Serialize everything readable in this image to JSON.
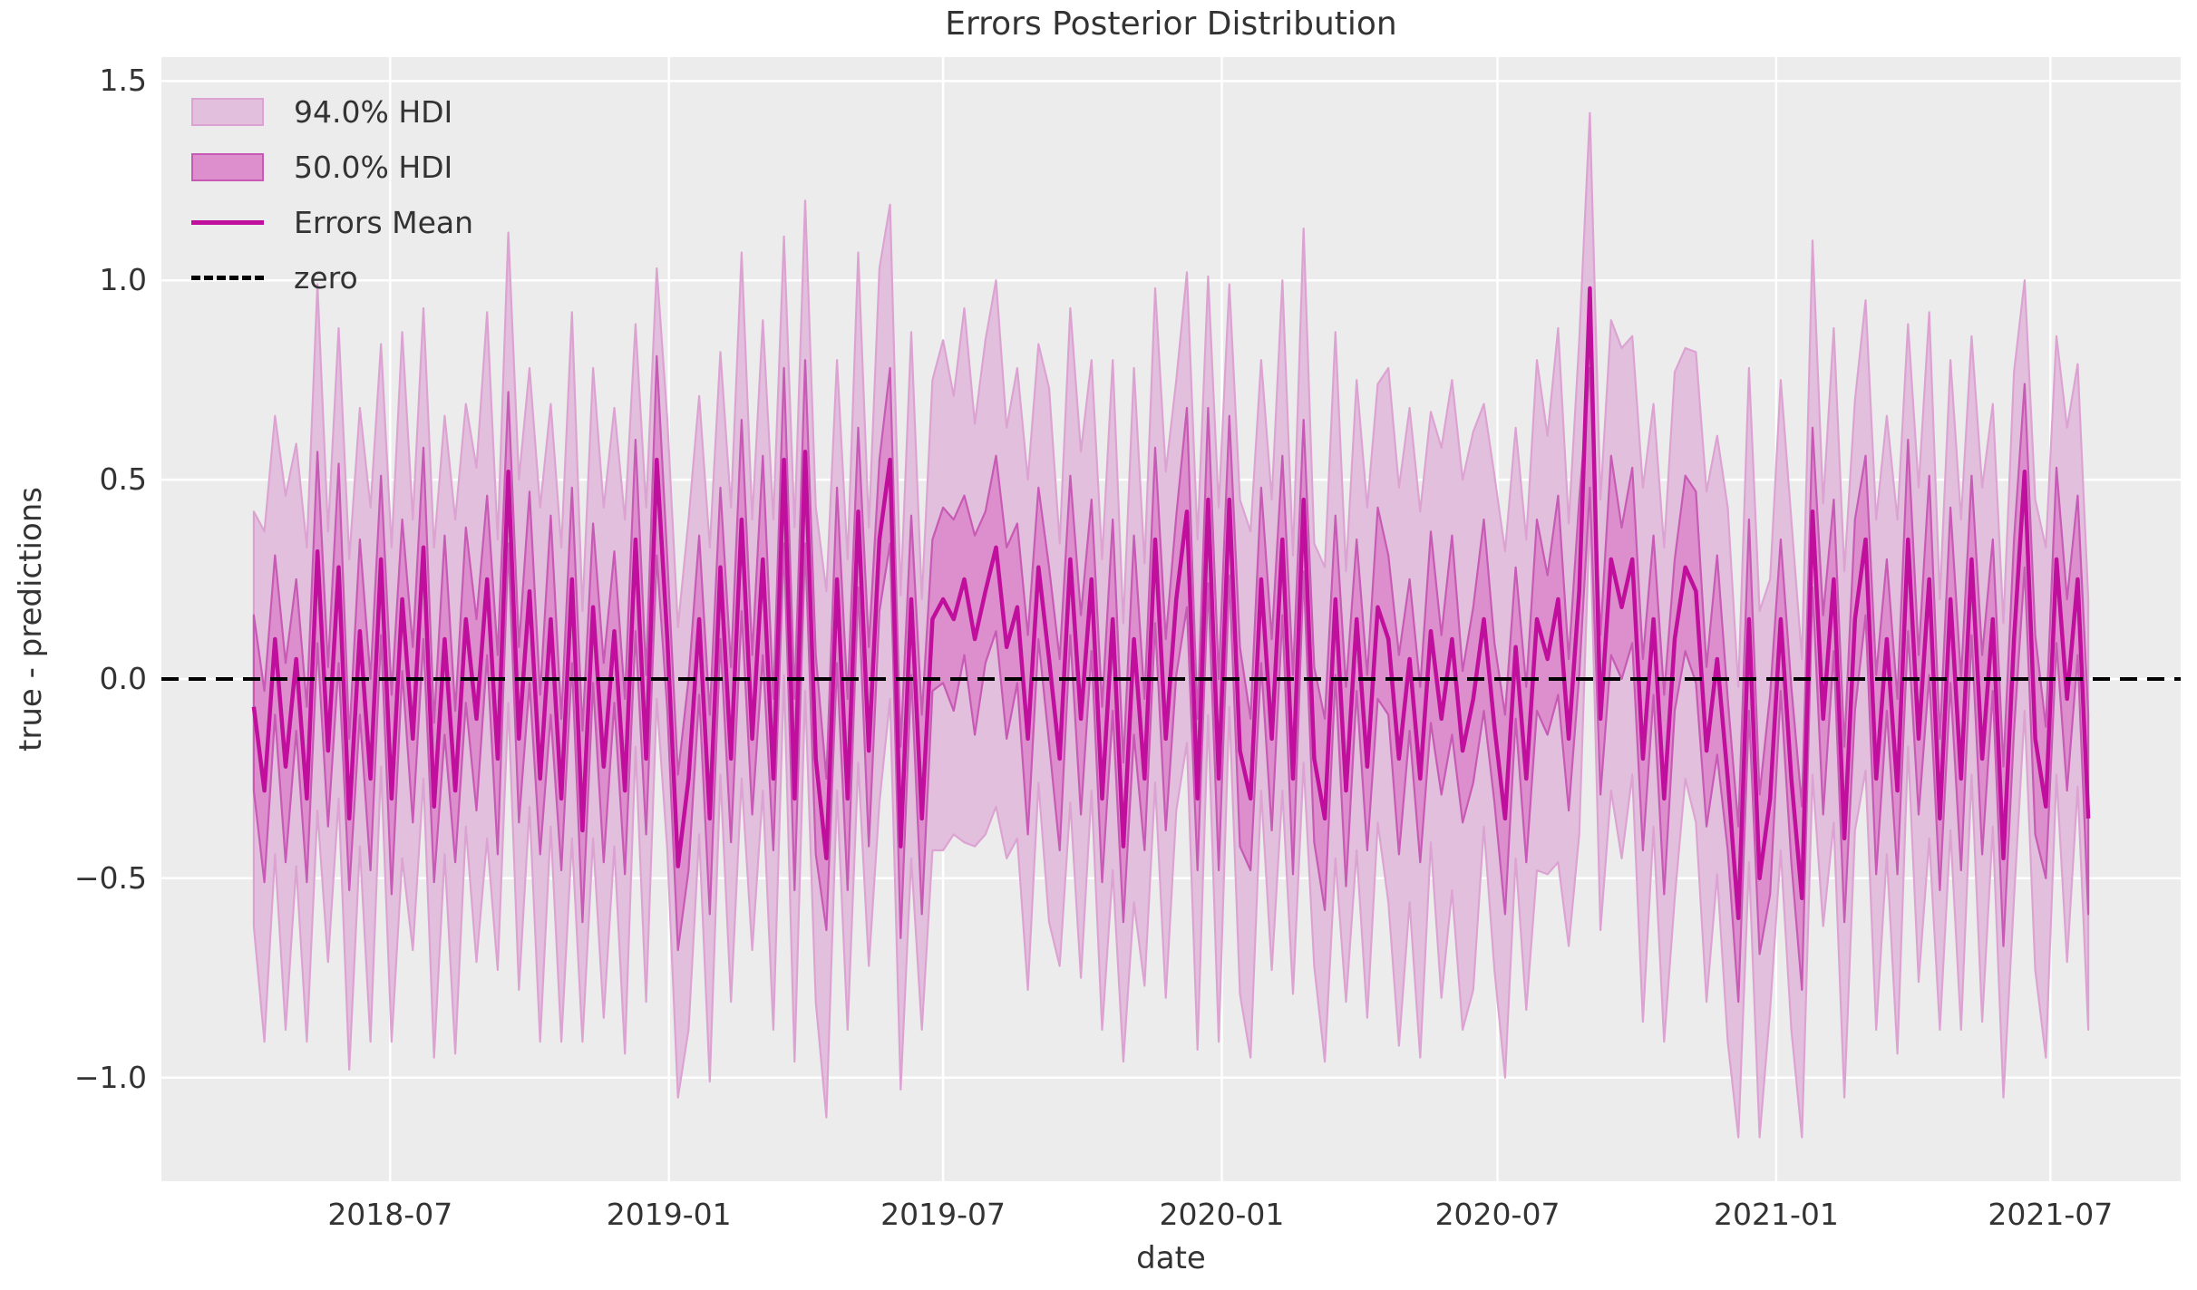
{
  "chart_data": {
    "type": "line",
    "title": "Errors Posterior Distribution",
    "xlabel": "date",
    "ylabel": "true - predictions",
    "grid": true,
    "x_axis": {
      "tick_dates": [
        "2018-07-01",
        "2019-01-01",
        "2019-07-01",
        "2020-01-01",
        "2020-07-01",
        "2021-01-01",
        "2021-07-01"
      ],
      "tick_labels": [
        "2018-07",
        "2019-01",
        "2019-07",
        "2020-01",
        "2020-07",
        "2021-01",
        "2021-07"
      ],
      "lim": [
        "2018-01-31",
        "2021-09-25"
      ]
    },
    "y_axis": {
      "ticks": [
        1.5,
        1.0,
        0.5,
        0.0,
        -0.5,
        -1.0
      ],
      "tick_labels": [
        "1.5",
        "1.0",
        "0.5",
        "0.0",
        "−0.5",
        "−1.0"
      ],
      "lim": [
        -1.26,
        1.56
      ]
    },
    "zero_line": {
      "label": "zero",
      "value": 0.0,
      "style": "dashed"
    },
    "legend": {
      "position": "upper left",
      "items": [
        {
          "label": "94.0% HDI",
          "type": "patch",
          "fill": "#E3BFDE",
          "edge": "#DCA3D2"
        },
        {
          "label": "50.0% HDI",
          "type": "patch",
          "fill": "#DC8FCC",
          "edge": "#C75AB4"
        },
        {
          "label": "Errors Mean",
          "type": "line",
          "color": "#C00F9C"
        },
        {
          "label": "zero",
          "type": "dashed-line",
          "color": "#000000"
        }
      ]
    },
    "series": {
      "name": "Errors Mean",
      "freq": "weekly",
      "dates": [
        "2018-04-02",
        "2018-04-09",
        "2018-04-16",
        "2018-04-23",
        "2018-04-30",
        "2018-05-07",
        "2018-05-14",
        "2018-05-21",
        "2018-05-28",
        "2018-06-04",
        "2018-06-11",
        "2018-06-18",
        "2018-06-25",
        "2018-07-02",
        "2018-07-09",
        "2018-07-16",
        "2018-07-23",
        "2018-07-30",
        "2018-08-06",
        "2018-08-13",
        "2018-08-20",
        "2018-08-27",
        "2018-09-03",
        "2018-09-10",
        "2018-09-17",
        "2018-09-24",
        "2018-10-01",
        "2018-10-08",
        "2018-10-15",
        "2018-10-22",
        "2018-10-29",
        "2018-11-05",
        "2018-11-12",
        "2018-11-19",
        "2018-11-26",
        "2018-12-03",
        "2018-12-10",
        "2018-12-17",
        "2018-12-24",
        "2018-12-31",
        "2019-01-07",
        "2019-01-14",
        "2019-01-21",
        "2019-01-28",
        "2019-02-04",
        "2019-02-11",
        "2019-02-18",
        "2019-02-25",
        "2019-03-04",
        "2019-03-11",
        "2019-03-18",
        "2019-03-25",
        "2019-04-01",
        "2019-04-08",
        "2019-04-15",
        "2019-04-22",
        "2019-04-29",
        "2019-05-06",
        "2019-05-13",
        "2019-05-20",
        "2019-05-27",
        "2019-06-03",
        "2019-06-10",
        "2019-06-17",
        "2019-06-24",
        "2019-07-01",
        "2019-07-08",
        "2019-07-15",
        "2019-07-22",
        "2019-07-29",
        "2019-08-05",
        "2019-08-12",
        "2019-08-19",
        "2019-08-26",
        "2019-09-02",
        "2019-09-09",
        "2019-09-16",
        "2019-09-23",
        "2019-09-30",
        "2019-10-07",
        "2019-10-14",
        "2019-10-21",
        "2019-10-28",
        "2019-11-04",
        "2019-11-11",
        "2019-11-18",
        "2019-11-25",
        "2019-12-02",
        "2019-12-09",
        "2019-12-16",
        "2019-12-23",
        "2019-12-30",
        "2020-01-06",
        "2020-01-13",
        "2020-01-20",
        "2020-01-27",
        "2020-02-03",
        "2020-02-10",
        "2020-02-17",
        "2020-02-24",
        "2020-03-02",
        "2020-03-09",
        "2020-03-16",
        "2020-03-23",
        "2020-03-30",
        "2020-04-06",
        "2020-04-13",
        "2020-04-20",
        "2020-04-27",
        "2020-05-04",
        "2020-05-11",
        "2020-05-18",
        "2020-05-25",
        "2020-06-01",
        "2020-06-08",
        "2020-06-15",
        "2020-06-22",
        "2020-06-29",
        "2020-07-06",
        "2020-07-13",
        "2020-07-20",
        "2020-07-27",
        "2020-08-03",
        "2020-08-10",
        "2020-08-17",
        "2020-08-24",
        "2020-08-31",
        "2020-09-07",
        "2020-09-14",
        "2020-09-21",
        "2020-09-28",
        "2020-10-05",
        "2020-10-12",
        "2020-10-19",
        "2020-10-26",
        "2020-11-02",
        "2020-11-09",
        "2020-11-16",
        "2020-11-23",
        "2020-11-30",
        "2020-12-07",
        "2020-12-14",
        "2020-12-21",
        "2020-12-28",
        "2021-01-04",
        "2021-01-11",
        "2021-01-18",
        "2021-01-25",
        "2021-02-01",
        "2021-02-08",
        "2021-02-15",
        "2021-02-22",
        "2021-03-01",
        "2021-03-08",
        "2021-03-15",
        "2021-03-22",
        "2021-03-29",
        "2021-04-05",
        "2021-04-12",
        "2021-04-19",
        "2021-04-26",
        "2021-05-03",
        "2021-05-10",
        "2021-05-17",
        "2021-05-24",
        "2021-05-31",
        "2021-06-07",
        "2021-06-14",
        "2021-06-21",
        "2021-06-28",
        "2021-07-05",
        "2021-07-12",
        "2021-07-19",
        "2021-07-26"
      ],
      "mean": [
        -0.07,
        -0.28,
        0.1,
        -0.22,
        0.05,
        -0.3,
        0.32,
        -0.18,
        0.28,
        -0.35,
        0.12,
        -0.25,
        0.3,
        -0.3,
        0.2,
        -0.15,
        0.33,
        -0.32,
        0.1,
        -0.28,
        0.15,
        -0.1,
        0.25,
        -0.2,
        0.52,
        -0.15,
        0.22,
        -0.25,
        0.15,
        -0.3,
        0.25,
        -0.38,
        0.18,
        -0.22,
        0.12,
        -0.28,
        0.35,
        -0.2,
        0.55,
        0.1,
        -0.47,
        -0.25,
        0.15,
        -0.35,
        0.28,
        -0.2,
        0.4,
        -0.15,
        0.3,
        -0.25,
        0.55,
        -0.3,
        0.57,
        -0.2,
        -0.45,
        0.25,
        -0.3,
        0.42,
        -0.18,
        0.35,
        0.55,
        -0.42,
        0.2,
        -0.35,
        0.15,
        0.2,
        0.15,
        0.25,
        0.1,
        0.22,
        0.33,
        0.08,
        0.18,
        -0.15,
        0.28,
        0.05,
        -0.2,
        0.3,
        -0.1,
        0.25,
        -0.3,
        0.15,
        -0.42,
        0.1,
        -0.25,
        0.35,
        -0.15,
        0.2,
        0.42,
        -0.3,
        0.45,
        -0.25,
        0.45,
        -0.18,
        -0.3,
        0.25,
        -0.15,
        0.35,
        -0.25,
        0.45,
        -0.2,
        -0.35,
        0.2,
        -0.28,
        0.15,
        -0.22,
        0.18,
        0.1,
        -0.2,
        0.05,
        -0.25,
        0.12,
        -0.1,
        0.1,
        -0.18,
        -0.05,
        0.15,
        -0.12,
        -0.35,
        0.08,
        -0.25,
        0.15,
        0.05,
        0.2,
        -0.15,
        0.22,
        0.98,
        -0.1,
        0.3,
        0.18,
        0.3,
        -0.2,
        0.15,
        -0.3,
        0.1,
        0.28,
        0.22,
        -0.18,
        0.05,
        -0.25,
        -0.6,
        0.15,
        -0.5,
        -0.3,
        0.15,
        -0.25,
        -0.55,
        0.42,
        -0.1,
        0.25,
        -0.4,
        0.15,
        0.35,
        -0.25,
        0.1,
        -0.28,
        0.35,
        -0.15,
        0.25,
        -0.35,
        0.2,
        -0.25,
        0.3,
        -0.2,
        0.15,
        -0.45,
        0.1,
        0.52,
        -0.15,
        -0.32,
        0.3,
        -0.05,
        0.25,
        -0.35
      ],
      "hdi50_halfwidth_default": [
        0.21,
        0.23
      ],
      "hdi94_halfwidth_default": [
        0.58,
        0.6
      ],
      "halfwidth_jitter94": [
        0.0,
        0.05,
        -0.04,
        0.08,
        -0.06,
        0.03,
        0.07,
        -0.05
      ],
      "halfwidth_jitter50": [
        0.0,
        0.02,
        -0.02,
        0.03,
        -0.03
      ],
      "band_overrides": {
        "0": {
          "hdi94": [
            -0.62,
            0.42
          ]
        },
        "38": {
          "hdi94": [
            -0.05,
            1.03
          ]
        },
        "52": {
          "hdi94": [
            -0.03,
            1.2
          ],
          "hdi50": [
            0.34,
            0.8
          ]
        },
        "60": {
          "hdi94": [
            -0.05,
            1.19
          ]
        },
        "108": {
          "hdi94": [
            -0.92,
            0.48
          ]
        },
        "110": {
          "hdi94": [
            -0.95,
            0.42
          ]
        },
        "112": {
          "hdi94": [
            -0.8,
            0.58
          ]
        },
        "114": {
          "hdi94": [
            -0.88,
            0.5
          ]
        },
        "115": {
          "hdi94": [
            -0.78,
            0.62
          ]
        },
        "126": {
          "hdi94": [
            0.42,
            1.42
          ],
          "hdi50": [
            0.48,
            0.78
          ]
        },
        "140": {
          "hdi94": [
            -1.15,
            -0.02
          ]
        },
        "146": {
          "hdi94": [
            -1.15,
            0.05
          ],
          "hdi50": [
            -0.78,
            -0.32
          ]
        },
        "165": {
          "hdi94": [
            -1.05,
            0.14
          ],
          "hdi50": [
            -0.67,
            -0.22
          ]
        },
        "167": {
          "hdi94": [
            -0.08,
            1.0
          ],
          "hdi50": [
            0.28,
            0.74
          ]
        },
        "173": {
          "hdi94": [
            -0.88,
            0.2
          ]
        }
      }
    },
    "style": {
      "colors": {
        "mean_line": "#C00F9C",
        "hdi50_fill": "#DC8FCC",
        "hdi50_edge": "#C75AB4",
        "hdi94_fill": "#E3BFDE",
        "hdi94_edge": "#DCA3D2",
        "zero_line": "#000000",
        "axes_background": "#ECECEC",
        "grid": "#FFFFFF",
        "text": "#333333",
        "figure_background": "#FFFFFF"
      }
    }
  }
}
